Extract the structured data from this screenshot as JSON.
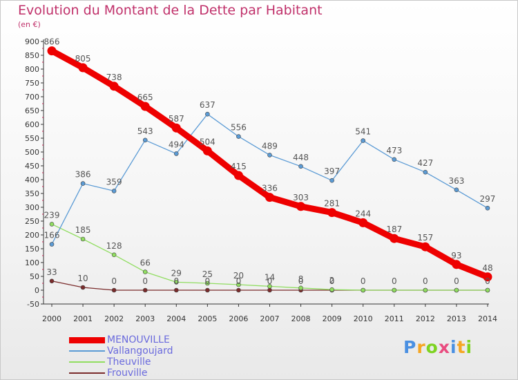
{
  "header": {
    "title": "Evolution du Montant de la Dette par Habitant",
    "subtitle": "(en €)"
  },
  "colors": {
    "title": "#c0306a",
    "legend_text": "#6a6add",
    "axis": "#333333",
    "grid": "#e0e0e0"
  },
  "logo": {
    "letters": [
      "P",
      "r",
      "o",
      "x",
      "i",
      "t",
      "i"
    ],
    "colors": [
      "#4a90e2",
      "#f5a623",
      "#7ed321",
      "#e94b7f",
      "#4a90e2",
      "#f5a623",
      "#7ed321"
    ]
  },
  "chart_data": {
    "type": "line",
    "title": "Evolution du Montant de la Dette par Habitant",
    "ylabel": "(en €)",
    "xlabel": "",
    "x": [
      2000,
      2001,
      2002,
      2003,
      2004,
      2005,
      2006,
      2007,
      2008,
      2009,
      2010,
      2011,
      2012,
      2013,
      2014
    ],
    "ylim": [
      -50,
      900
    ],
    "yticks": [
      -50,
      0,
      50,
      100,
      150,
      200,
      250,
      300,
      350,
      400,
      450,
      500,
      550,
      600,
      650,
      700,
      750,
      800,
      850,
      900
    ],
    "grid": false,
    "legend_position": "bottom-left",
    "series": [
      {
        "name": "MENOUVILLE",
        "color": "#ee0000",
        "values": [
          866,
          805,
          738,
          665,
          587,
          504,
          415,
          336,
          303,
          281,
          244,
          187,
          157,
          93,
          48
        ],
        "labels": [
          "866",
          "805",
          "738",
          "665",
          "587",
          "504",
          "415",
          "336",
          "303",
          "281",
          "244",
          "187",
          "157",
          "93",
          "48"
        ]
      },
      {
        "name": "Vallangoujard",
        "color": "#5b9bd5",
        "values": [
          166,
          386,
          359,
          543,
          494,
          637,
          556,
          489,
          448,
          397,
          541,
          473,
          427,
          363,
          297
        ],
        "labels": [
          "166",
          "386",
          "359",
          "543",
          "494",
          "637",
          "556",
          "489",
          "448",
          "397",
          "541",
          "473",
          "427",
          "363",
          "297"
        ]
      },
      {
        "name": "Theuville",
        "color": "#90dd60",
        "values": [
          239,
          185,
          128,
          66,
          29,
          25,
          20,
          14,
          8,
          2,
          0,
          0,
          0,
          0,
          0
        ],
        "labels": [
          "239",
          "185",
          "128",
          "66",
          "29",
          "25",
          "20",
          "14",
          "8",
          "2",
          "",
          "",
          "",
          "",
          ""
        ]
      },
      {
        "name": "Frouville",
        "color": "#7a2b2b",
        "values": [
          33,
          10,
          0,
          0,
          0,
          0,
          0,
          0,
          0,
          0,
          0,
          0,
          0,
          0,
          0
        ],
        "labels": [
          "33",
          "10",
          "0",
          "0",
          "0",
          "0",
          "0",
          "0",
          "0",
          "0",
          "0",
          "0",
          "0",
          "0",
          "0"
        ]
      }
    ]
  }
}
